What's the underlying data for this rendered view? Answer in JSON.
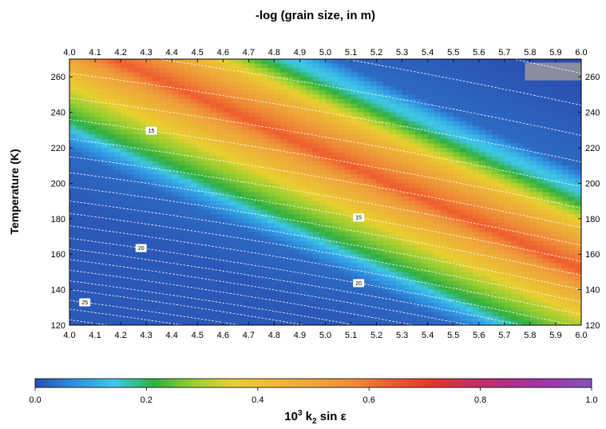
{
  "chart_data": {
    "type": "heatmap",
    "title": "-log (grain size, in m)",
    "ylabel": "Temperature (K)",
    "xlim": [
      4.0,
      6.0
    ],
    "ylim": [
      120,
      270
    ],
    "x_ticks": [
      "4.0",
      "4.1",
      "4.2",
      "4.3",
      "4.4",
      "4.5",
      "4.6",
      "4.7",
      "4.8",
      "4.9",
      "5.0",
      "5.1",
      "5.2",
      "5.3",
      "5.4",
      "5.5",
      "5.6",
      "5.7",
      "5.8",
      "5.9",
      "6.0"
    ],
    "y_ticks": [
      "120",
      "140",
      "160",
      "180",
      "200",
      "220",
      "240",
      "260"
    ],
    "y_tick_values": [
      120,
      140,
      160,
      180,
      200,
      220,
      240,
      260
    ],
    "colorbar": {
      "label_main": "10",
      "label_sup": "3",
      "label_k": " k",
      "label_sub": "2",
      "label_rest": " sin ε",
      "range": [
        0.0,
        1.0
      ],
      "ticks": [
        "0.0",
        "0.2",
        "0.4",
        "0.6",
        "0.8",
        "1.0"
      ],
      "colors": [
        "#2b4fb0",
        "#2f8fe0",
        "#3fc8e8",
        "#30b040",
        "#9ccf30",
        "#e8d030",
        "#ecbb35",
        "#eea63a",
        "#ef8a38",
        "#ee5a2e",
        "#e8352a",
        "#c43060",
        "#b02e8a",
        "#9c3aaa",
        "#8355b5"
      ]
    },
    "contours": [
      {
        "intercept": 123,
        "label": ""
      },
      {
        "intercept": 129,
        "label": ""
      },
      {
        "intercept": 134,
        "label": "25"
      },
      {
        "intercept": 140,
        "label": ""
      },
      {
        "intercept": 145,
        "label": ""
      },
      {
        "intercept": 151,
        "label": ""
      },
      {
        "intercept": 157,
        "label": ""
      },
      {
        "intercept": 163,
        "label": ""
      },
      {
        "intercept": 169,
        "label": "20"
      },
      {
        "intercept": 176,
        "label": ""
      },
      {
        "intercept": 183,
        "label": ""
      },
      {
        "intercept": 190,
        "label": ""
      },
      {
        "intercept": 198,
        "label": ""
      },
      {
        "intercept": 206,
        "label": ""
      },
      {
        "intercept": 215,
        "label": ""
      },
      {
        "intercept": 225,
        "label": ""
      },
      {
        "intercept": 236,
        "label": "15"
      },
      {
        "intercept": 248,
        "label": ""
      },
      {
        "intercept": 262,
        "label": ""
      },
      {
        "intercept": 277,
        "label": ""
      },
      {
        "intercept": 294,
        "label": ""
      },
      {
        "intercept": 312,
        "label": ""
      },
      {
        "intercept": 332,
        "label": ""
      },
      {
        "intercept": 354,
        "label": ""
      }
    ],
    "contour_slope_per_x": -19,
    "extra_contour_labels": [
      {
        "x": 5.13,
        "intercept": 206,
        "label": "15"
      },
      {
        "x": 5.13,
        "intercept": 169,
        "label": "20"
      }
    ]
  }
}
